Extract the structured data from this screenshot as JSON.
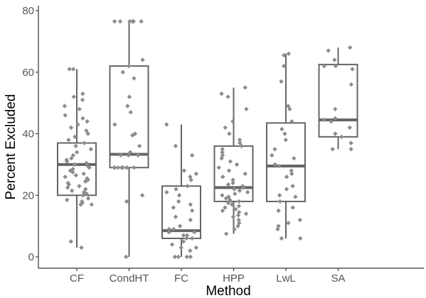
{
  "chart_data": {
    "type": "boxplot",
    "xlabel": "Method",
    "ylabel": "Percent Excluded",
    "ylim": [
      -3,
      80
    ],
    "yticks": [
      0,
      20,
      40,
      60,
      80
    ],
    "categories": [
      "CF",
      "CondHT",
      "FC",
      "HPP",
      "LwL",
      "SA"
    ],
    "boxes": [
      {
        "name": "CF",
        "min": 3,
        "q1": 20,
        "median": 30,
        "q3": 37,
        "max": 61
      },
      {
        "name": "CondHT",
        "min": 0,
        "q1": 29,
        "median": 33.3,
        "q3": 62,
        "max": 76.5
      },
      {
        "name": "FC",
        "min": 0,
        "q1": 6,
        "median": 8.5,
        "q3": 23,
        "max": 43
      },
      {
        "name": "HPP",
        "min": 7.5,
        "q1": 18,
        "median": 22.5,
        "q3": 36,
        "max": 55
      },
      {
        "name": "LwL",
        "min": 6,
        "q1": 18,
        "median": 29.5,
        "q3": 43.5,
        "max": 66
      },
      {
        "name": "SA",
        "min": 35,
        "q1": 39,
        "median": 44.5,
        "q3": 62.5,
        "max": 68
      }
    ],
    "points": {
      "CF": [
        3,
        5,
        17,
        17,
        17.5,
        18,
        18.5,
        19,
        20,
        20.5,
        21,
        21.5,
        22,
        22.5,
        23,
        23.5,
        24,
        24.5,
        25,
        25.5,
        26,
        26.5,
        27,
        27.5,
        28,
        28.5,
        29,
        29.5,
        30,
        30,
        30.5,
        31,
        31.5,
        32,
        33,
        34,
        35,
        36,
        37,
        38,
        39,
        40,
        41,
        42,
        43,
        44,
        45,
        46,
        48,
        49,
        51,
        52,
        53,
        61,
        61
      ],
      "CondHT": [
        0,
        18,
        20,
        29,
        29,
        29,
        29,
        29,
        29,
        29,
        29,
        29,
        33,
        33,
        33,
        34,
        36,
        39.5,
        40,
        43,
        47,
        49,
        52,
        58,
        60,
        62,
        64,
        76.5,
        76.5,
        76.5,
        76.5,
        76.5,
        76.5,
        76.5
      ],
      "FC": [
        0,
        0,
        0,
        0,
        2,
        3,
        3,
        4,
        5,
        6,
        6,
        7,
        7,
        8,
        8,
        9,
        9,
        10,
        12,
        13,
        15,
        16,
        17,
        18,
        20,
        21,
        22,
        23,
        25,
        26,
        27,
        28,
        33,
        36,
        43
      ],
      "HPP": [
        7.5,
        9,
        10,
        11,
        12,
        13,
        13.5,
        14,
        14.5,
        15,
        15.5,
        16,
        16.5,
        17,
        17.5,
        18,
        18,
        18.5,
        19,
        19.5,
        20,
        20.5,
        21,
        21.5,
        22,
        22.5,
        23,
        23.5,
        24,
        25,
        26,
        27,
        28,
        29,
        30,
        31,
        32,
        33,
        34,
        35,
        36,
        37,
        38,
        40,
        42,
        44,
        48,
        52,
        53,
        55
      ],
      "LwL": [
        6,
        6,
        9,
        10,
        11,
        12,
        15,
        16,
        18,
        19.5,
        20,
        22,
        23,
        26,
        27,
        28,
        29.5,
        30,
        32,
        33,
        35,
        38,
        40,
        41.5,
        44,
        48,
        49,
        57,
        62,
        65.5,
        66
      ],
      "SA": [
        35,
        35,
        37,
        39,
        40,
        42,
        44,
        44.5,
        45,
        48,
        56,
        61,
        62,
        62,
        64,
        67,
        68
      ]
    }
  }
}
